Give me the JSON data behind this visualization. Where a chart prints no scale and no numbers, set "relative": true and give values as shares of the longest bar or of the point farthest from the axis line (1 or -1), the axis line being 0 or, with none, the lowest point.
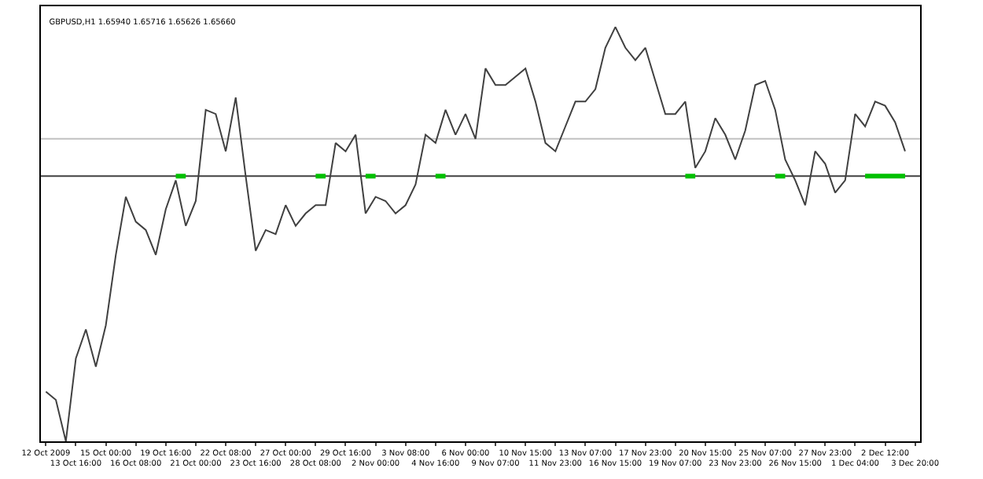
{
  "chart_data": {
    "type": "line",
    "title": "GBPUSD,H1 1.65940 1.65716 1.65626 1.65660",
    "relative": true,
    "categories": [
      "12 Oct 2009",
      null,
      null,
      "13 Oct 16:00",
      null,
      null,
      "15 Oct 00:00",
      null,
      null,
      "16 Oct 08:00",
      null,
      null,
      "19 Oct 16:00",
      null,
      null,
      "21 Oct 00:00",
      null,
      null,
      "22 Oct 08:00",
      null,
      null,
      "23 Oct 16:00",
      null,
      null,
      "27 Oct 00:00",
      null,
      null,
      "28 Oct 08:00",
      null,
      null,
      "29 Oct 16:00",
      null,
      null,
      "2 Nov 00:00",
      null,
      null,
      "3 Nov 08:00",
      null,
      null,
      "4 Nov 16:00",
      null,
      null,
      "6 Nov 00:00",
      null,
      null,
      "9 Nov 07:00",
      null,
      null,
      "10 Nov 15:00",
      null,
      null,
      "11 Nov 23:00",
      null,
      null,
      "13 Nov 07:00",
      null,
      null,
      "16 Nov 15:00",
      null,
      null,
      "17 Nov 23:00",
      null,
      null,
      "19 Nov 07:00",
      null,
      null,
      "20 Nov 15:00",
      null,
      null,
      "23 Nov 23:00",
      null,
      null,
      "25 Nov 07:00",
      null,
      null,
      "26 Nov 15:00",
      null,
      null,
      "27 Nov 23:00",
      null,
      null,
      "1 Dec 04:00",
      null,
      null,
      "2 Dec 12:00",
      null,
      null,
      "3 Dec 20:00"
    ],
    "ref_lines": [
      {
        "axis": "y",
        "value": 0.73,
        "color": "#c0c0c0"
      },
      {
        "axis": "y",
        "value": 0.64,
        "color": "#404040"
      }
    ],
    "grid": false,
    "series": [
      {
        "color": "#404040",
        "values": [
          0.12,
          0.1,
          0.0,
          0.2,
          0.27,
          0.18,
          0.28,
          0.45,
          0.59,
          0.53,
          0.51,
          0.45,
          0.56,
          0.63,
          0.52,
          0.58,
          0.8,
          0.79,
          0.7,
          0.83,
          0.64,
          0.46,
          0.51,
          0.5,
          0.57,
          0.52,
          0.55,
          0.57,
          0.57,
          0.72,
          0.7,
          0.74,
          0.55,
          0.59,
          0.58,
          0.55,
          0.57,
          0.62,
          0.74,
          0.72,
          0.8,
          0.74,
          0.79,
          0.73,
          0.9,
          0.86,
          0.86,
          0.88,
          0.9,
          0.82,
          0.72,
          0.7,
          0.76,
          0.82,
          0.82,
          0.85,
          0.95,
          1.0,
          0.95,
          0.92,
          0.95,
          0.87,
          0.79,
          0.79,
          0.82,
          0.66,
          0.7,
          0.78,
          0.74,
          0.68,
          0.75,
          0.86,
          0.87,
          0.8,
          0.68,
          0.63,
          0.57,
          0.7,
          0.67,
          0.6,
          0.63,
          0.79,
          0.76,
          0.82,
          0.81,
          0.77,
          0.7,
          null
        ]
      },
      {
        "color": "#00c000",
        "values": [
          null,
          null,
          null,
          null,
          null,
          null,
          null,
          null,
          null,
          null,
          null,
          null,
          null,
          0.64,
          0.64,
          null,
          null,
          null,
          null,
          null,
          null,
          null,
          null,
          null,
          null,
          null,
          null,
          0.64,
          0.64,
          null,
          null,
          null,
          0.64,
          0.64,
          null,
          null,
          null,
          null,
          null,
          0.64,
          0.64,
          null,
          null,
          null,
          null,
          null,
          null,
          null,
          null,
          null,
          null,
          null,
          null,
          null,
          null,
          null,
          null,
          null,
          null,
          null,
          null,
          null,
          null,
          null,
          0.64,
          0.64,
          null,
          null,
          null,
          null,
          null,
          null,
          null,
          0.64,
          0.64,
          null,
          null,
          null,
          null,
          null,
          null,
          null,
          0.64,
          0.64,
          0.64,
          0.64,
          0.64,
          null
        ]
      }
    ]
  }
}
